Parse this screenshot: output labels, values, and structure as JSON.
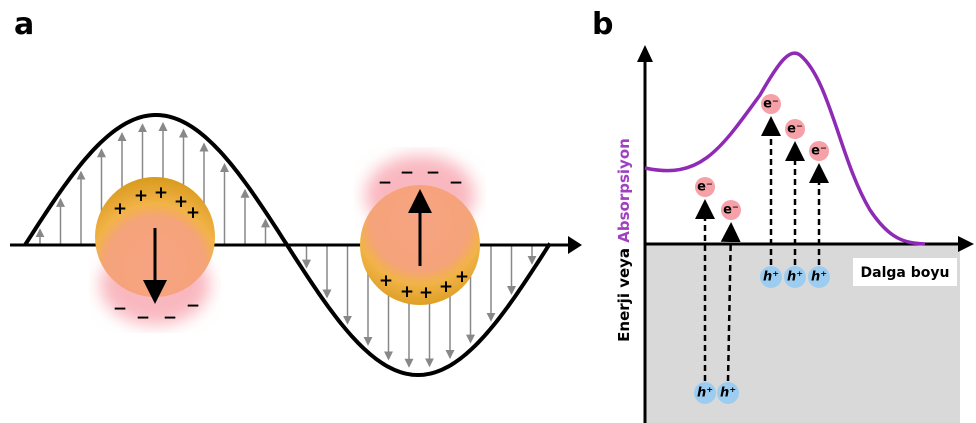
{
  "panels": [
    {
      "label": "a",
      "particles": [
        {
          "top_charges": [
            "+",
            "+",
            "+",
            "+",
            "+"
          ],
          "bottom_charges": [
            "−",
            "−",
            "−",
            "−"
          ]
        },
        {
          "top_charges": [
            "−",
            "−",
            "−",
            "−"
          ],
          "bottom_charges": [
            "+",
            "+",
            "+",
            "+",
            "+"
          ]
        }
      ]
    },
    {
      "label": "b",
      "y_axis_label": [
        "Enerji veya ",
        "Absorpsiyon"
      ],
      "x_axis_label": "Dalga boyu",
      "electrons": [
        "e⁻",
        "e⁻",
        "e⁻",
        "e⁻",
        "e⁻"
      ],
      "holes": [
        "h⁺",
        "h⁺",
        "h⁺",
        "h⁺",
        "h⁺"
      ]
    }
  ]
}
